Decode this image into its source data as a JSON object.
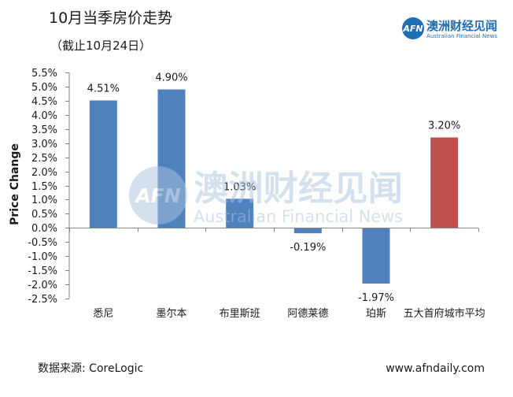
{
  "chart_data": {
    "type": "bar",
    "title": "10月当季房价走势",
    "subtitle": "（截止10月24日）",
    "xlabel": "",
    "ylabel": "Price Change",
    "categories": [
      "悉尼",
      "墨尔本",
      "布里斯班",
      "阿德莱德",
      "珀斯",
      "五大首府城市平均"
    ],
    "values": [
      4.51,
      4.9,
      1.03,
      -0.19,
      -1.97,
      3.2
    ],
    "value_labels": [
      "4.51%",
      "4.90%",
      "1.03%",
      "-0.19%",
      "-1.97%",
      "3.20%"
    ],
    "ylim": [
      -2.5,
      5.5
    ],
    "yticks": [
      5.5,
      5.0,
      4.5,
      4.0,
      3.5,
      3.0,
      2.5,
      2.0,
      1.5,
      1.0,
      0.5,
      0.0,
      -0.5,
      -1.0,
      -1.5,
      -2.0,
      -2.5
    ],
    "ytick_labels": [
      "5.5%",
      "5.0%",
      "4.5%",
      "4.0%",
      "3.5%",
      "3.0%",
      "2.5%",
      "2.0%",
      "1.5%",
      "1.0%",
      "0.5%",
      "0.0%",
      "-0.5%",
      "-1.0%",
      "-1.5%",
      "-2.0%",
      "-2.5%"
    ],
    "bar_colors": [
      "#4f81bd",
      "#4f81bd",
      "#4f81bd",
      "#4f81bd",
      "#4f81bd",
      "#c0504d"
    ],
    "grid": false,
    "legend": "none"
  },
  "logo": {
    "mark": "AFN",
    "name_cn": "澳洲财经见闻",
    "name_en": "Australian Financial News"
  },
  "watermark": {
    "mark": "AFN",
    "name_cn": "澳洲财经见闻",
    "name_en": "Australian Financial News"
  },
  "footer": {
    "source": "数据来源: CoreLogic",
    "website": "www.afndaily.com"
  },
  "colors": {
    "brand": "#1f6db5",
    "watermark": "#a9c3de",
    "axis": "#868686"
  }
}
